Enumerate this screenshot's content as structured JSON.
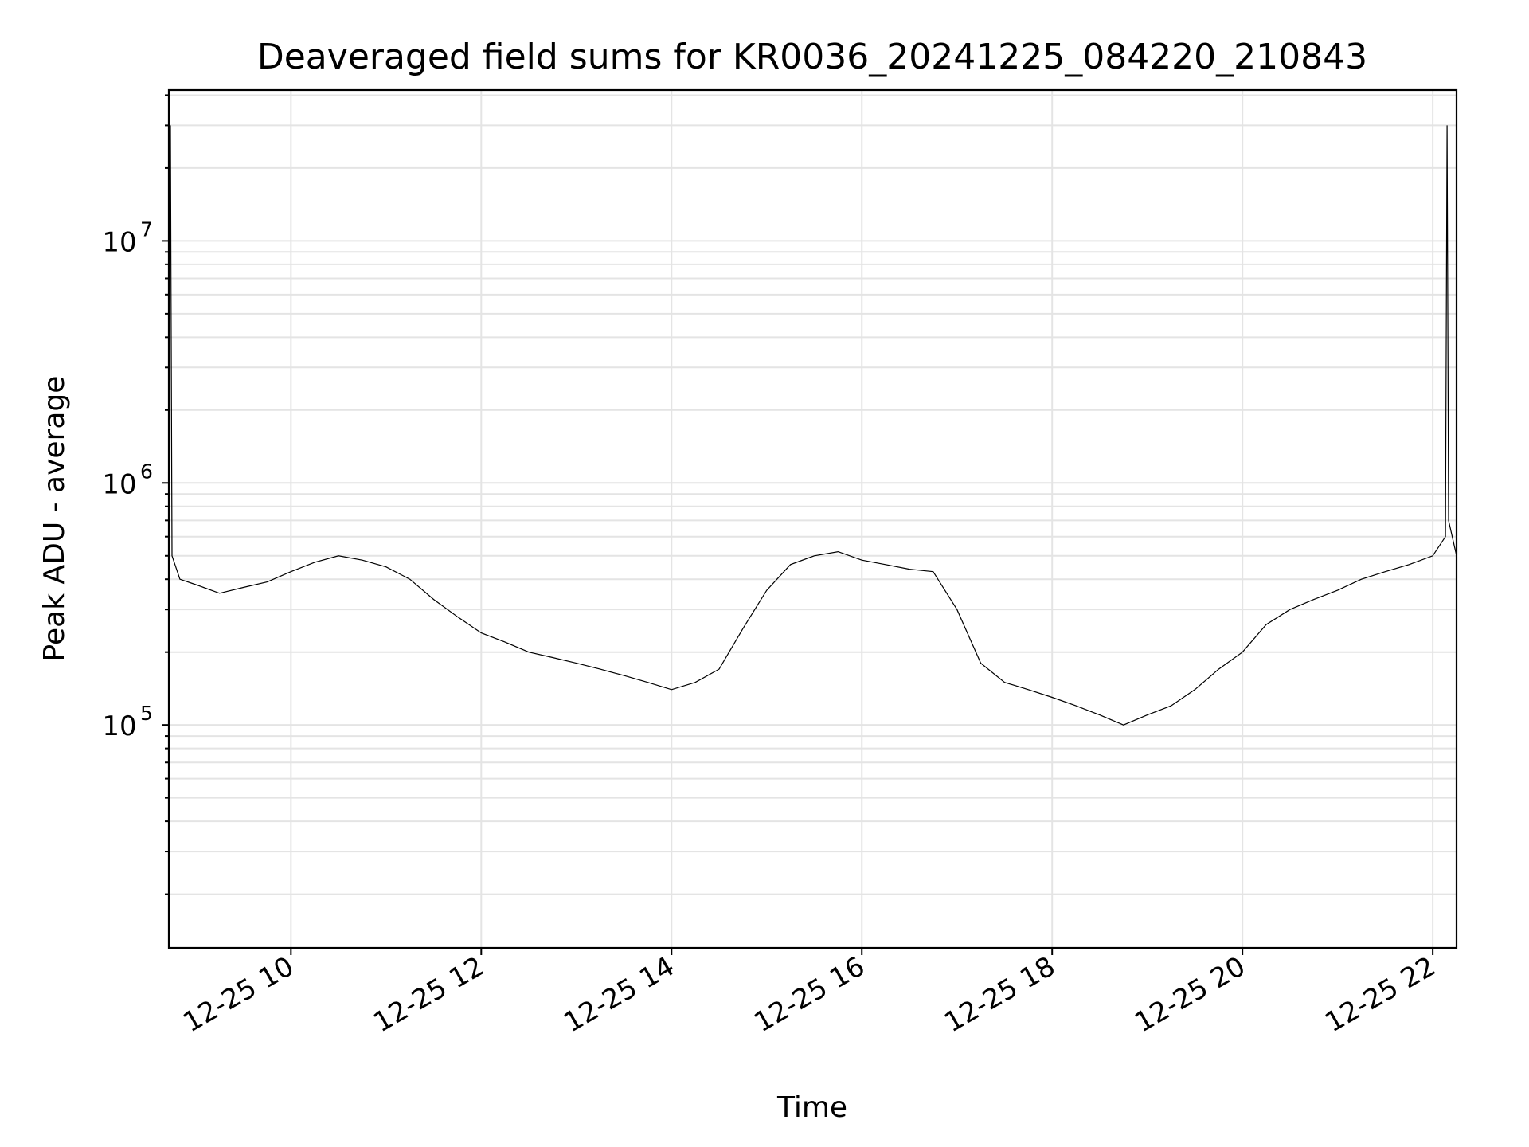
{
  "chart_data": {
    "type": "line",
    "title": "Deaveraged field sums for KR0036_20241225_084220_210843",
    "xlabel": "Time",
    "ylabel": "Peak ADU - average",
    "yscale": "log",
    "grid": true,
    "xlim": [
      "2024-12-25 08:43",
      "2024-12-25 22:15"
    ],
    "ylim": [
      12000,
      42000000
    ],
    "x_ticks": [
      "12-25 10",
      "12-25 12",
      "12-25 14",
      "12-25 16",
      "12-25 18",
      "12-25 20",
      "12-25 22"
    ],
    "y_ticks": [
      {
        "value": 100000,
        "base": "10",
        "exp": "5"
      },
      {
        "value": 1000000,
        "base": "10",
        "exp": "6"
      },
      {
        "value": 10000000,
        "base": "10",
        "exp": "7"
      }
    ],
    "series": [
      {
        "color": "#000000",
        "x": [
          "2024-12-25 08:43",
          "2024-12-25 08:44",
          "2024-12-25 08:45",
          "2024-12-25 08:50",
          "2024-12-25 09:00",
          "2024-12-25 09:15",
          "2024-12-25 09:30",
          "2024-12-25 09:45",
          "2024-12-25 10:00",
          "2024-12-25 10:15",
          "2024-12-25 10:30",
          "2024-12-25 10:45",
          "2024-12-25 11:00",
          "2024-12-25 11:15",
          "2024-12-25 11:30",
          "2024-12-25 11:45",
          "2024-12-25 12:00",
          "2024-12-25 12:15",
          "2024-12-25 12:30",
          "2024-12-25 12:45",
          "2024-12-25 13:00",
          "2024-12-25 13:15",
          "2024-12-25 13:30",
          "2024-12-25 13:45",
          "2024-12-25 14:00",
          "2024-12-25 14:15",
          "2024-12-25 14:30",
          "2024-12-25 14:45",
          "2024-12-25 15:00",
          "2024-12-25 15:15",
          "2024-12-25 15:30",
          "2024-12-25 15:45",
          "2024-12-25 16:00",
          "2024-12-25 16:15",
          "2024-12-25 16:30",
          "2024-12-25 16:45",
          "2024-12-25 17:00",
          "2024-12-25 17:15",
          "2024-12-25 17:30",
          "2024-12-25 17:45",
          "2024-12-25 18:00",
          "2024-12-25 18:15",
          "2024-12-25 18:30",
          "2024-12-25 18:45",
          "2024-12-25 19:00",
          "2024-12-25 19:15",
          "2024-12-25 19:30",
          "2024-12-25 19:45",
          "2024-12-25 20:00",
          "2024-12-25 20:15",
          "2024-12-25 20:30",
          "2024-12-25 20:45",
          "2024-12-25 21:00",
          "2024-12-25 21:15",
          "2024-12-25 21:30",
          "2024-12-25 21:45",
          "2024-12-25 22:00",
          "2024-12-25 22:08",
          "2024-12-25 22:09",
          "2024-12-25 22:10",
          "2024-12-25 22:15"
        ],
        "y": [
          400000,
          30000000,
          500000,
          400000,
          380000,
          350000,
          370000,
          390000,
          430000,
          470000,
          500000,
          480000,
          450000,
          400000,
          330000,
          280000,
          240000,
          220000,
          200000,
          190000,
          180000,
          170000,
          160000,
          150000,
          140000,
          150000,
          170000,
          250000,
          360000,
          460000,
          500000,
          520000,
          480000,
          460000,
          440000,
          430000,
          300000,
          180000,
          150000,
          140000,
          130000,
          120000,
          110000,
          100000,
          110000,
          120000,
          140000,
          170000,
          200000,
          260000,
          300000,
          330000,
          360000,
          400000,
          430000,
          460000,
          500000,
          600000,
          30000000,
          700000,
          500000
        ]
      }
    ]
  }
}
